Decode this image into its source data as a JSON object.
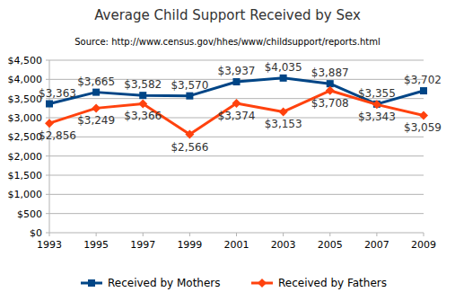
{
  "chart_data": {
    "type": "line",
    "title": "Average Child Support Received by Sex",
    "subtitle": "Source:  http://www.census.gov/hhes/www/childsupport/reports.html",
    "categories": [
      "1993",
      "1995",
      "1997",
      "1999",
      "2001",
      "2003",
      "2005",
      "2007",
      "2009"
    ],
    "series": [
      {
        "name": "Received by Mothers",
        "color": "#004586",
        "marker": "square",
        "values": [
          3363,
          3665,
          3582,
          3570,
          3937,
          4035,
          3887,
          3355,
          3702
        ],
        "value_labels": [
          "$3,363",
          "$3,665",
          "$3,582",
          "$3,570",
          "$3,937",
          "$4,035",
          "$3,887",
          "$3,355",
          "$3,702"
        ]
      },
      {
        "name": "Received by Fathers",
        "color": "#ff420e",
        "marker": "diamond",
        "values": [
          2856,
          3249,
          3366,
          2566,
          3374,
          3153,
          3708,
          3343,
          3059
        ],
        "value_labels": [
          "$2,856",
          "$3,249",
          "$3,366",
          "$2,566",
          "$3,374",
          "$3,153",
          "$3,708",
          "$3,343",
          "$3,059"
        ]
      }
    ],
    "ylim": [
      0,
      4500
    ],
    "yticks": [
      {
        "value": 0,
        "label": "$0"
      },
      {
        "value": 500,
        "label": "$500"
      },
      {
        "value": 1000,
        "label": "$1,000"
      },
      {
        "value": 1500,
        "label": "$1,500"
      },
      {
        "value": 2000,
        "label": "$2,000"
      },
      {
        "value": 2500,
        "label": "$2,500"
      },
      {
        "value": 3000,
        "label": "$3,000"
      },
      {
        "value": 3500,
        "label": "$3,500"
      },
      {
        "value": 4000,
        "label": "$4,000"
      },
      {
        "value": 4500,
        "label": "$4,500"
      }
    ],
    "grid": true,
    "data_labels": true,
    "legend": "bottom"
  }
}
